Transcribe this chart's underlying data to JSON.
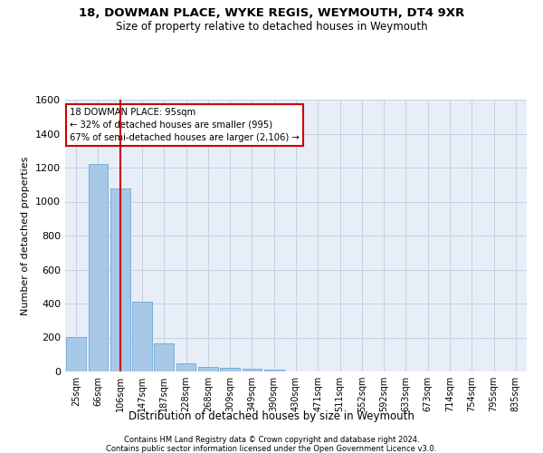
{
  "title": "18, DOWMAN PLACE, WYKE REGIS, WEYMOUTH, DT4 9XR",
  "subtitle": "Size of property relative to detached houses in Weymouth",
  "xlabel": "Distribution of detached houses by size in Weymouth",
  "ylabel": "Number of detached properties",
  "categories": [
    "25sqm",
    "66sqm",
    "106sqm",
    "147sqm",
    "187sqm",
    "228sqm",
    "268sqm",
    "309sqm",
    "349sqm",
    "390sqm",
    "430sqm",
    "471sqm",
    "511sqm",
    "552sqm",
    "592sqm",
    "633sqm",
    "673sqm",
    "714sqm",
    "754sqm",
    "795sqm",
    "835sqm"
  ],
  "values": [
    205,
    1220,
    1075,
    410,
    165,
    48,
    25,
    20,
    15,
    10,
    0,
    0,
    0,
    0,
    0,
    0,
    0,
    0,
    0,
    0,
    0
  ],
  "bar_color": "#a8c8e8",
  "bar_edge_color": "#6aaad4",
  "grid_color": "#c8d0e0",
  "bg_color": "#e8eef8",
  "vline_x": 2.0,
  "vline_color": "#cc0000",
  "annotation_line1": "18 DOWMAN PLACE: 95sqm",
  "annotation_line2": "← 32% of detached houses are smaller (995)",
  "annotation_line3": "67% of semi-detached houses are larger (2,106) →",
  "annotation_box_color": "#cc0000",
  "ylim": [
    0,
    1600
  ],
  "yticks": [
    0,
    200,
    400,
    600,
    800,
    1000,
    1200,
    1400,
    1600
  ],
  "footer1": "Contains HM Land Registry data © Crown copyright and database right 2024.",
  "footer2": "Contains public sector information licensed under the Open Government Licence v3.0."
}
